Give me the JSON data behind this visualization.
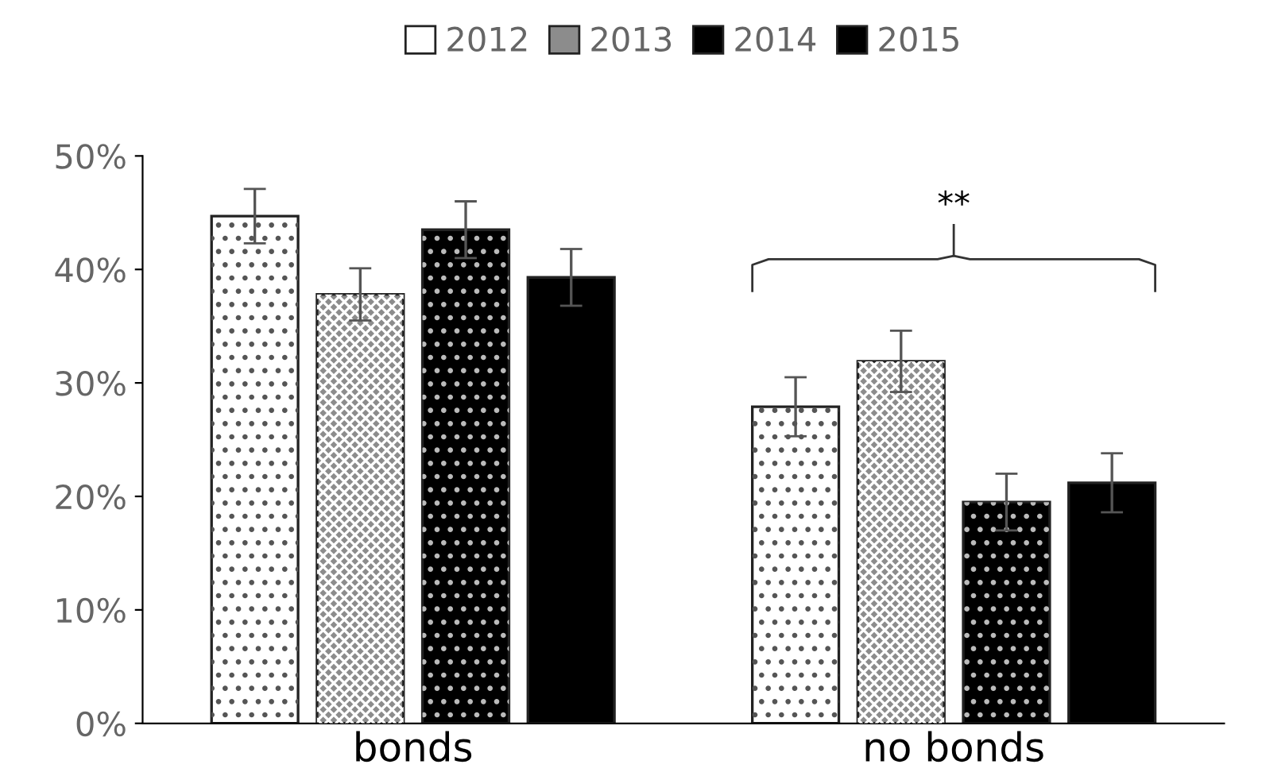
{
  "chart_data": {
    "type": "bar",
    "categories": [
      "bonds",
      "no bonds"
    ],
    "series": [
      {
        "name": "2012",
        "color": "#ffffff",
        "values": [
          44.7,
          27.9
        ],
        "errors": [
          2.4,
          2.6
        ]
      },
      {
        "name": "2013",
        "color": "#8c8c8c",
        "values": [
          37.8,
          31.9
        ],
        "errors": [
          2.3,
          2.7
        ]
      },
      {
        "name": "2014",
        "color": "#000000",
        "values": [
          43.5,
          19.5
        ],
        "errors": [
          2.5,
          2.5
        ]
      },
      {
        "name": "2015",
        "color": "#000000",
        "values": [
          39.3,
          21.2
        ],
        "errors": [
          2.5,
          2.6
        ]
      }
    ],
    "ylim": [
      0,
      50
    ],
    "yticks": [
      {
        "value": 0,
        "label": "0%"
      },
      {
        "value": 10,
        "label": "10%"
      },
      {
        "value": 20,
        "label": "20%"
      },
      {
        "value": 30,
        "label": "30%"
      },
      {
        "value": 40,
        "label": "40%"
      },
      {
        "value": 50,
        "label": "50%"
      }
    ],
    "annotations": [
      "**"
    ],
    "legend": "top",
    "grid": false
  }
}
